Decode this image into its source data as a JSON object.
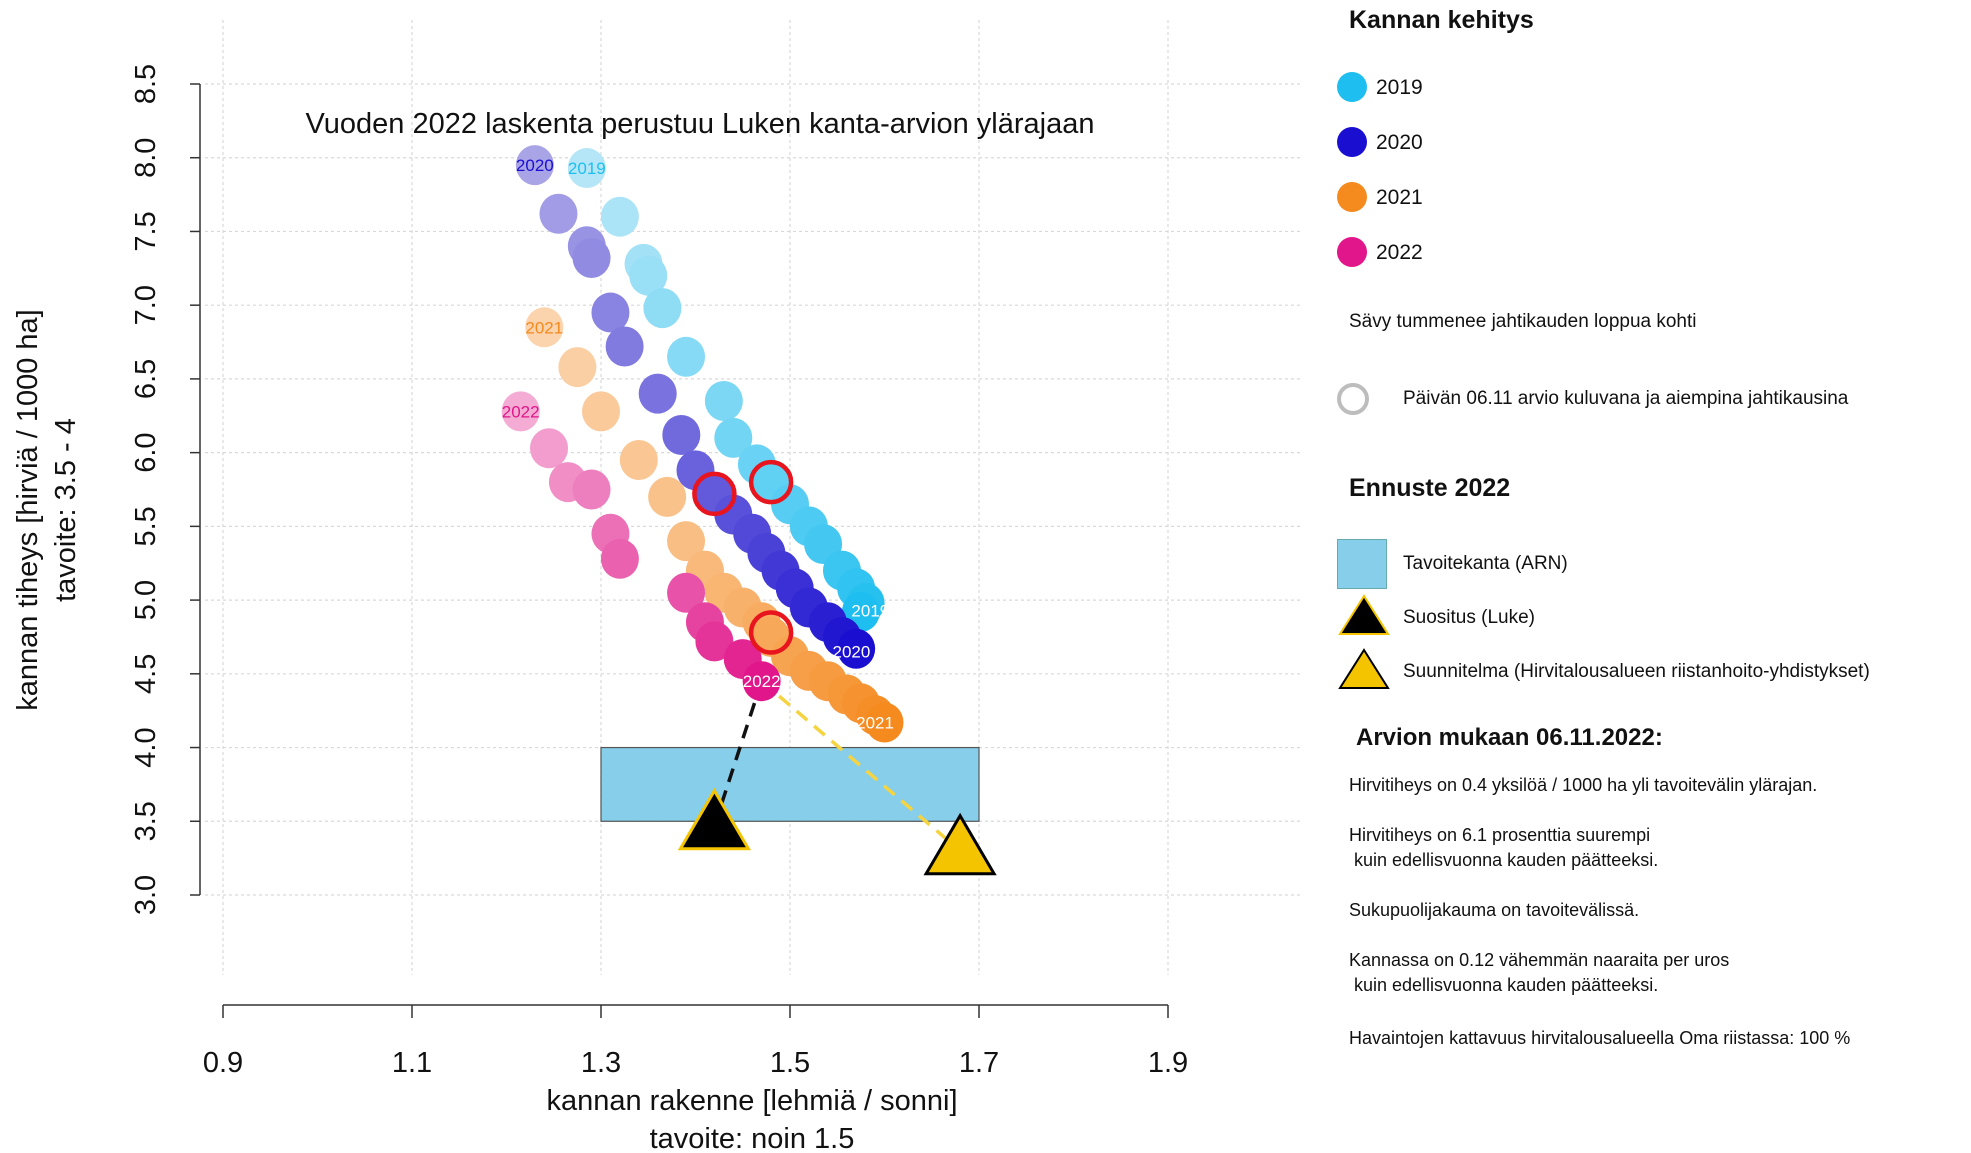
{
  "chart_data": {
    "type": "scatter",
    "title": "Vuoden 2022 laskenta perustuu Luken kanta-arvion ylärajaan",
    "xlabel": "kannan rakenne  [lehmiä / sonni]",
    "xlabel2": "tavoite: noin 1.5",
    "ylabel": "kannan tiheys  [hirviä / 1000 ha]",
    "ylabel2": "tavoite: 3.5 - 4",
    "xlim": [
      0.9,
      1.9
    ],
    "ylim": [
      3.0,
      8.5
    ],
    "xticks": [
      "0.9",
      "1.1",
      "1.3",
      "1.5",
      "1.7",
      "1.9"
    ],
    "yticks": [
      "3.0",
      "3.5",
      "4.0",
      "4.5",
      "5.0",
      "5.5",
      "6.0",
      "6.5",
      "7.0",
      "7.5",
      "8.0",
      "8.5"
    ],
    "grid": true,
    "series": [
      {
        "name": "2019",
        "color_light": "#b5e6f7",
        "color_dark": "#1ebef0",
        "points": [
          [
            1.285,
            7.93
          ],
          [
            1.32,
            7.6
          ],
          [
            1.345,
            7.28
          ],
          [
            1.35,
            7.2
          ],
          [
            1.365,
            6.98
          ],
          [
            1.39,
            6.65
          ],
          [
            1.43,
            6.35
          ],
          [
            1.44,
            6.1
          ],
          [
            1.465,
            5.92
          ],
          [
            1.48,
            5.8
          ],
          [
            1.5,
            5.65
          ],
          [
            1.52,
            5.5
          ],
          [
            1.535,
            5.38
          ],
          [
            1.555,
            5.2
          ],
          [
            1.57,
            5.08
          ],
          [
            1.58,
            4.98
          ],
          [
            1.575,
            4.92
          ]
        ],
        "label_point": [
          1.285,
          7.93
        ],
        "end_label_point": [
          1.585,
          4.93
        ]
      },
      {
        "name": "2020",
        "color_light": "#a9a4e6",
        "color_dark": "#1a0fd0",
        "points": [
          [
            1.23,
            7.95
          ],
          [
            1.255,
            7.62
          ],
          [
            1.285,
            7.4
          ],
          [
            1.29,
            7.32
          ],
          [
            1.31,
            6.95
          ],
          [
            1.325,
            6.72
          ],
          [
            1.36,
            6.4
          ],
          [
            1.385,
            6.12
          ],
          [
            1.4,
            5.88
          ],
          [
            1.42,
            5.72
          ],
          [
            1.44,
            5.58
          ],
          [
            1.46,
            5.45
          ],
          [
            1.475,
            5.32
          ],
          [
            1.49,
            5.2
          ],
          [
            1.505,
            5.08
          ],
          [
            1.52,
            4.95
          ],
          [
            1.54,
            4.85
          ],
          [
            1.555,
            4.75
          ],
          [
            1.57,
            4.67
          ]
        ],
        "label_point": [
          1.23,
          7.95
        ],
        "end_label_point": [
          1.565,
          4.65
        ]
      },
      {
        "name": "2021",
        "color_light": "#fbd3ac",
        "color_dark": "#f58a1f",
        "points": [
          [
            1.24,
            6.85
          ],
          [
            1.275,
            6.58
          ],
          [
            1.3,
            6.28
          ],
          [
            1.34,
            5.95
          ],
          [
            1.37,
            5.7
          ],
          [
            1.39,
            5.4
          ],
          [
            1.41,
            5.2
          ],
          [
            1.43,
            5.05
          ],
          [
            1.45,
            4.95
          ],
          [
            1.47,
            4.85
          ],
          [
            1.48,
            4.75
          ],
          [
            1.5,
            4.62
          ],
          [
            1.52,
            4.52
          ],
          [
            1.54,
            4.45
          ],
          [
            1.56,
            4.36
          ],
          [
            1.575,
            4.3
          ],
          [
            1.59,
            4.22
          ],
          [
            1.6,
            4.17
          ]
        ],
        "label_point": [
          1.24,
          6.85
        ],
        "end_label_point": [
          1.59,
          4.17
        ]
      },
      {
        "name": "2022",
        "color_light": "#f4acd4",
        "color_dark": "#e0168a",
        "points": [
          [
            1.215,
            6.28
          ],
          [
            1.245,
            6.03
          ],
          [
            1.265,
            5.8
          ],
          [
            1.29,
            5.75
          ],
          [
            1.31,
            5.45
          ],
          [
            1.32,
            5.28
          ],
          [
            1.39,
            5.05
          ],
          [
            1.41,
            4.85
          ],
          [
            1.42,
            4.72
          ],
          [
            1.45,
            4.6
          ],
          [
            1.47,
            4.45
          ]
        ],
        "label_point": [
          1.215,
          6.28
        ],
        "end_label_point": [
          1.47,
          4.45
        ]
      }
    ],
    "highlight_circles": [
      [
        1.42,
        5.72
      ],
      [
        1.48,
        5.8
      ],
      [
        1.48,
        4.78
      ]
    ],
    "target_rect": {
      "x0": 1.3,
      "x1": 1.7,
      "y0": 3.5,
      "y1": 4.0,
      "color": "#87ceeb"
    },
    "recommendation_point": [
      1.42,
      3.47
    ],
    "plan_point": [
      1.68,
      3.3
    ],
    "start_point": [
      1.47,
      4.45
    ]
  },
  "legend": {
    "heading_development": "Kannan kehitys",
    "years": [
      {
        "label": "2019",
        "color": "#1ebef0"
      },
      {
        "label": "2020",
        "color": "#1a0fd0"
      },
      {
        "label": "2021",
        "color": "#f58a1f"
      },
      {
        "label": "2022",
        "color": "#e0168a"
      }
    ],
    "shade_note": "Sävy tummenee jahtikauden loppua kohti",
    "circle_note": "Päivän 06.11 arvio kuluvana ja aiempina jahtikausina",
    "heading_forecast": "Ennuste 2022",
    "target_label": "Tavoitekanta (ARN)",
    "recommendation_label": "Suositus (Luke)",
    "plan_label": "Suunnitelma (Hirvitalousalueen riistanhoito-yhdistykset)",
    "heading_estimate": "Arvion mukaan 06.11.2022:",
    "notes": [
      "Hirvitiheys  on 0.4 yksilöä / 1000 ha yli tavoitevälin ylärajan.",
      "Hirvitiheys on 6.1  prosenttia suurempi",
      " kuin edellisvuonna kauden päätteeksi.",
      "Sukupuolijakauma on tavoitevälissä.",
      "Kannassa on 0.12  vähemmän naaraita per uros",
      " kuin edellisvuonna kauden päätteeksi.",
      "Havaintojen kattavuus hirvitalousalueella Oma riistassa:  100 %"
    ]
  }
}
